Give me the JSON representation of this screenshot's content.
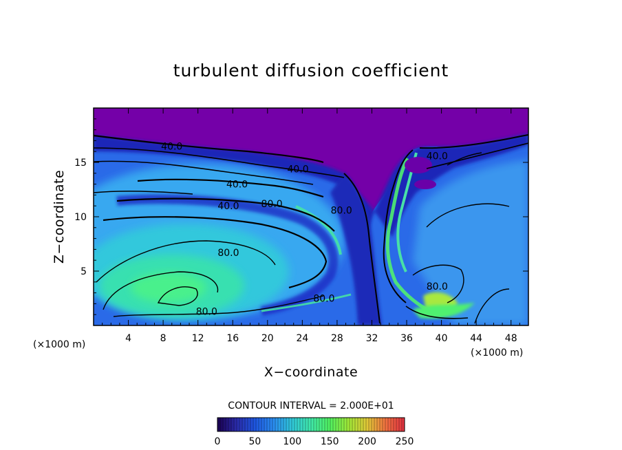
{
  "chart_data": {
    "type": "heatmap",
    "title": "turbulent diffusion coefficient",
    "xlabel": "X−coordinate",
    "ylabel": "Z−coordinate",
    "x_unit_left": "(×1000 m)",
    "x_unit_right": "(×1000 m)",
    "xlim": [
      0,
      50
    ],
    "ylim": [
      0,
      20
    ],
    "x_ticks": [
      4,
      8,
      12,
      16,
      20,
      24,
      28,
      32,
      36,
      40,
      44,
      48
    ],
    "y_ticks": [
      5,
      10,
      15
    ],
    "contour_interval_text": "CONTOUR INTERVAL = 2.000E+01",
    "contour_labels": [
      {
        "text": "40.0",
        "x": 9,
        "z": 16.5
      },
      {
        "text": "40.0",
        "x": 23.5,
        "z": 14.4
      },
      {
        "text": "40.0",
        "x": 16.5,
        "z": 13.0
      },
      {
        "text": "40.0",
        "x": 15.5,
        "z": 11.0
      },
      {
        "text": "80.0",
        "x": 20.5,
        "z": 11.2
      },
      {
        "text": "80.0",
        "x": 28.5,
        "z": 10.6
      },
      {
        "text": "80.0",
        "x": 15.5,
        "z": 6.7
      },
      {
        "text": "80.0",
        "x": 26.5,
        "z": 2.5
      },
      {
        "text": "80.0",
        "x": 13.0,
        "z": 1.3
      },
      {
        "text": "80.0",
        "x": 39.5,
        "z": 3.6
      },
      {
        "text": "40.0",
        "x": 39.5,
        "z": 15.6
      }
    ],
    "colorbar": {
      "min": 0,
      "max": 250,
      "ticks": [
        "0",
        "50",
        "100",
        "150",
        "200",
        "250"
      ],
      "colors": [
        "#1a0050",
        "#2a2aa8",
        "#1e56e0",
        "#2a8cf0",
        "#30c8d8",
        "#40e8a8",
        "#50f060",
        "#a0e838",
        "#e0c838",
        "#f07040",
        "#e03040"
      ]
    },
    "palette": {
      "sky": "#7400a8",
      "deep_blue": "#1d2cc4",
      "blue": "#2468e8",
      "light_blue": "#38a4f0",
      "cyan": "#30c8dc",
      "aqua": "#38e0b0",
      "green": "#48f07c",
      "lime": "#a8e840"
    }
  }
}
